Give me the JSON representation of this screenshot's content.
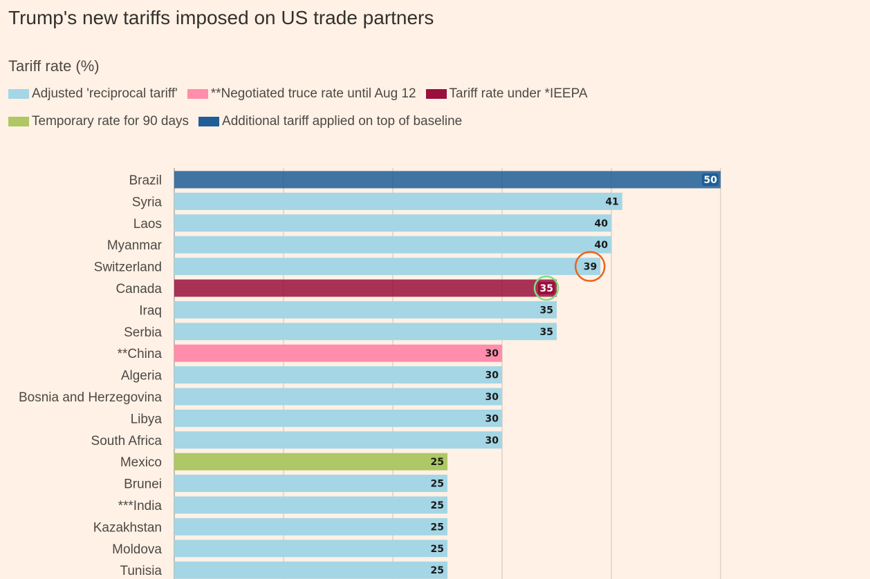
{
  "title": "Trump's new tariffs imposed on US trade partners",
  "subtitle": "Tariff rate (%)",
  "legend": [
    {
      "key": "reciprocal",
      "label": "Adjusted 'reciprocal tariff'",
      "color": "#a4d6e5"
    },
    {
      "key": "truce",
      "label": "**Negotiated truce rate until Aug 12",
      "color": "#ff8dab"
    },
    {
      "key": "ieepa",
      "label": "Tariff rate under *IEEPA",
      "color": "#990f3d"
    },
    {
      "key": "temporary",
      "label": "Temporary rate for 90 days",
      "color": "#adc864"
    },
    {
      "key": "additional",
      "label": "Additional tariff applied on top of baseline",
      "color": "#1f5e96"
    }
  ],
  "chart_data": {
    "type": "bar",
    "orientation": "horizontal",
    "xlim": [
      0,
      50
    ],
    "grid": true,
    "categories": [
      "Brazil",
      "Syria",
      "Laos",
      "Myanmar",
      "Switzerland",
      "Canada",
      "Iraq",
      "Serbia",
      "**China",
      "Algeria",
      "Bosnia and Herzegovina",
      "Libya",
      "South Africa",
      "Mexico",
      "Brunei",
      "***India",
      "Kazakhstan",
      "Moldova",
      "Tunisia"
    ],
    "values": [
      50,
      41,
      40,
      40,
      39,
      35,
      35,
      35,
      30,
      30,
      30,
      30,
      30,
      25,
      25,
      25,
      25,
      25,
      25
    ],
    "series_keys": [
      "additional",
      "reciprocal",
      "reciprocal",
      "reciprocal",
      "reciprocal",
      "ieepa",
      "reciprocal",
      "reciprocal",
      "truce",
      "reciprocal",
      "reciprocal",
      "reciprocal",
      "reciprocal",
      "temporary",
      "reciprocal",
      "reciprocal",
      "reciprocal",
      "reciprocal",
      "reciprocal"
    ],
    "annotations": [
      {
        "category": "Switzerland",
        "type": "circle",
        "color": "#e8631f"
      },
      {
        "category": "Canada",
        "type": "circle",
        "color": "#7ee07e"
      }
    ]
  }
}
